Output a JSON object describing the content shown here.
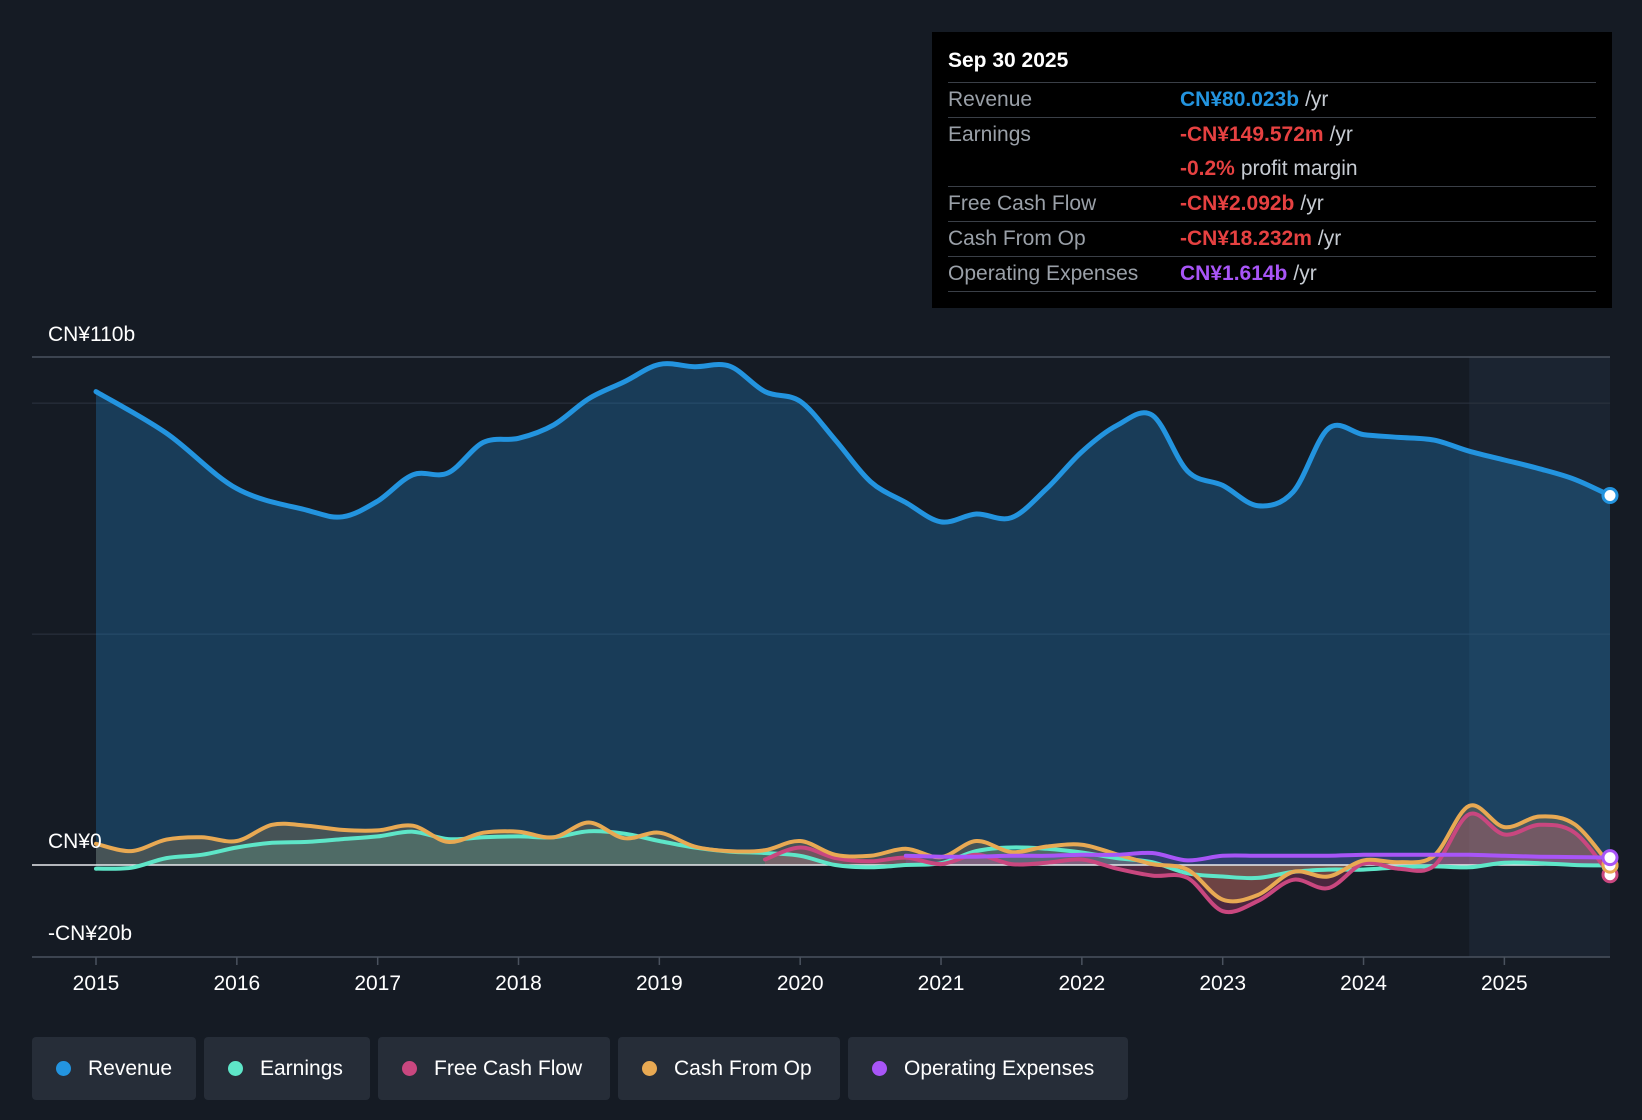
{
  "tooltip": {
    "date": "Sep 30 2025",
    "rows": [
      {
        "label": "Revenue",
        "value": "CN¥80.023b",
        "unit": "/yr",
        "color": "#2394df"
      },
      {
        "label": "Earnings",
        "value": "-CN¥149.572m",
        "unit": "/yr",
        "color": "#e64141"
      },
      {
        "label": "",
        "value": "-0.2%",
        "unit": "profit margin",
        "color": "#e64141"
      },
      {
        "label": "Free Cash Flow",
        "value": "-CN¥2.092b",
        "unit": "/yr",
        "color": "#e64141"
      },
      {
        "label": "Cash From Op",
        "value": "-CN¥18.232m",
        "unit": "/yr",
        "color": "#e64141"
      },
      {
        "label": "Operating Expenses",
        "value": "CN¥1.614b",
        "unit": "/yr",
        "color": "#a855f7"
      }
    ]
  },
  "legend": [
    {
      "label": "Revenue",
      "color": "#2394df"
    },
    {
      "label": "Earnings",
      "color": "#5ee6c8"
    },
    {
      "label": "Free Cash Flow",
      "color": "#c9477f"
    },
    {
      "label": "Cash From Op",
      "color": "#e8a953"
    },
    {
      "label": "Operating Expenses",
      "color": "#a855f7"
    }
  ],
  "chart_data": {
    "type": "area",
    "title": "",
    "xlabel": "",
    "ylabel": "",
    "ylim": [
      -20,
      110
    ],
    "xlim": [
      2015,
      2025.75
    ],
    "y_tick_labels": [
      "CN¥110b",
      "CN¥0",
      "-CN¥20b"
    ],
    "x_tick_labels": [
      "2015",
      "2016",
      "2017",
      "2018",
      "2019",
      "2020",
      "2021",
      "2022",
      "2023",
      "2024",
      "2025"
    ],
    "series": [
      {
        "name": "Revenue",
        "color": "#2394df",
        "x": [
          2015.0,
          2015.5,
          2016.0,
          2016.5,
          2016.75,
          2017.0,
          2017.25,
          2017.5,
          2017.75,
          2018.0,
          2018.25,
          2018.5,
          2018.75,
          2019.0,
          2019.25,
          2019.5,
          2019.75,
          2020.0,
          2020.25,
          2020.5,
          2020.75,
          2021.0,
          2021.25,
          2021.5,
          2021.75,
          2022.0,
          2022.25,
          2022.5,
          2022.75,
          2023.0,
          2023.25,
          2023.5,
          2023.75,
          2024.0,
          2024.25,
          2024.5,
          2024.75,
          2025.0,
          2025.25,
          2025.5,
          2025.75
        ],
        "values": [
          102.5,
          93.5,
          81.5,
          76.8,
          75.4,
          78.8,
          84.5,
          84.9,
          91.5,
          92.4,
          95.3,
          101.0,
          104.6,
          108.4,
          107.9,
          108.0,
          102.5,
          100.4,
          92.0,
          83.0,
          78.5,
          74.3,
          76.0,
          75.2,
          81.5,
          89.5,
          95.2,
          97.4,
          85.3,
          82.2,
          77.8,
          80.8,
          94.5,
          93.2,
          92.6,
          92.0,
          89.6,
          87.7,
          85.8,
          83.5,
          80.0
        ]
      },
      {
        "name": "Earnings",
        "color": "#5ee6c8",
        "x": [
          2015.0,
          2015.25,
          2015.5,
          2015.75,
          2016.0,
          2016.25,
          2016.5,
          2016.75,
          2017.0,
          2017.25,
          2017.5,
          2017.75,
          2018.0,
          2018.25,
          2018.5,
          2018.75,
          2019.0,
          2019.25,
          2019.5,
          2019.75,
          2020.0,
          2020.25,
          2020.5,
          2020.75,
          2021.0,
          2021.25,
          2021.5,
          2021.75,
          2022.0,
          2022.25,
          2022.5,
          2022.75,
          2023.0,
          2023.25,
          2023.5,
          2023.75,
          2024.0,
          2024.25,
          2024.5,
          2024.75,
          2025.0,
          2025.25,
          2025.5,
          2025.75
        ],
        "values": [
          -0.8,
          -0.6,
          1.5,
          2.2,
          3.8,
          4.8,
          5.0,
          5.6,
          6.2,
          7.2,
          5.6,
          6.0,
          6.2,
          6.0,
          7.3,
          6.8,
          5.2,
          3.8,
          2.9,
          2.6,
          2.0,
          0.0,
          -0.5,
          0.0,
          0.4,
          3.0,
          3.8,
          3.5,
          2.7,
          1.5,
          0.6,
          -1.8,
          -2.5,
          -2.8,
          -1.5,
          -1.0,
          -1.0,
          -0.5,
          -0.3,
          -0.5,
          0.5,
          0.4,
          0.0,
          -0.1
        ]
      },
      {
        "name": "Free Cash Flow",
        "color": "#c9477f",
        "x": [
          2019.75,
          2020.0,
          2020.25,
          2020.5,
          2020.75,
          2021.0,
          2021.25,
          2021.5,
          2021.75,
          2022.0,
          2022.25,
          2022.5,
          2022.75,
          2023.0,
          2023.25,
          2023.5,
          2023.75,
          2024.0,
          2024.25,
          2024.5,
          2024.75,
          2025.0,
          2025.25,
          2025.5,
          2025.75
        ],
        "values": [
          1.2,
          3.8,
          1.5,
          0.8,
          1.6,
          0.2,
          2.2,
          0.2,
          0.5,
          1.2,
          -0.8,
          -2.3,
          -2.8,
          -10.0,
          -7.8,
          -3.2,
          -5.0,
          0.3,
          -0.8,
          -0.2,
          11.0,
          6.6,
          8.7,
          7.0,
          -2.1
        ]
      },
      {
        "name": "Cash From Op",
        "color": "#e8a953",
        "x": [
          2015.0,
          2015.25,
          2015.5,
          2015.75,
          2016.0,
          2016.25,
          2016.5,
          2016.75,
          2017.0,
          2017.25,
          2017.5,
          2017.75,
          2018.0,
          2018.25,
          2018.5,
          2018.75,
          2019.0,
          2019.25,
          2019.5,
          2019.75,
          2020.0,
          2020.25,
          2020.5,
          2020.75,
          2021.0,
          2021.25,
          2021.5,
          2021.75,
          2022.0,
          2022.25,
          2022.5,
          2022.75,
          2023.0,
          2023.25,
          2023.5,
          2023.75,
          2024.0,
          2024.25,
          2024.5,
          2024.75,
          2025.0,
          2025.25,
          2025.5,
          2025.75
        ],
        "values": [
          4.6,
          3.0,
          5.5,
          6.0,
          5.2,
          8.7,
          8.5,
          7.6,
          7.5,
          8.5,
          5.0,
          7.0,
          7.2,
          6.0,
          9.2,
          5.8,
          7.0,
          4.0,
          3.0,
          3.2,
          5.2,
          2.2,
          2.0,
          3.5,
          1.7,
          5.2,
          2.8,
          4.0,
          4.4,
          2.3,
          0.2,
          -1.0,
          -7.5,
          -6.5,
          -1.5,
          -2.5,
          1.0,
          0.6,
          2.0,
          12.8,
          8.2,
          10.5,
          8.8,
          -0.02
        ]
      },
      {
        "name": "Operating Expenses",
        "color": "#a855f7",
        "x": [
          2020.75,
          2021.0,
          2021.25,
          2021.5,
          2021.75,
          2022.0,
          2022.25,
          2022.5,
          2022.75,
          2023.0,
          2023.25,
          2023.5,
          2023.75,
          2024.0,
          2024.25,
          2024.5,
          2024.75,
          2025.0,
          2025.25,
          2025.5,
          2025.75
        ],
        "values": [
          2.0,
          1.8,
          1.8,
          2.0,
          2.0,
          2.2,
          2.2,
          2.6,
          1.0,
          2.0,
          2.0,
          2.0,
          2.0,
          2.2,
          2.2,
          2.2,
          2.2,
          2.0,
          1.8,
          1.7,
          1.6
        ]
      }
    ]
  }
}
